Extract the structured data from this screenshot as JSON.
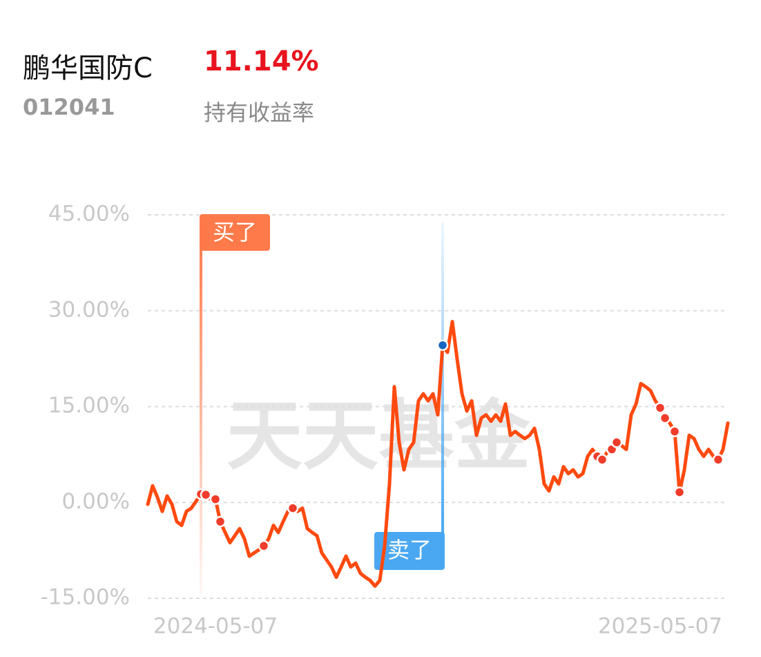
{
  "header": {
    "fund_name": "鹏华国防C",
    "return_value": "11.14%",
    "fund_code": "012041",
    "return_label": "持有收益率"
  },
  "chart_data": {
    "type": "line",
    "watermark": "天天基金",
    "color": "#ff4a0f",
    "dot_color": "#f03c2a",
    "grid": true,
    "ylim": [
      -15,
      45
    ],
    "yticks": [
      {
        "value": -15,
        "label": "-15.00%"
      },
      {
        "value": 0,
        "label": "0.00%"
      },
      {
        "value": 15,
        "label": "15.00%"
      },
      {
        "value": 30,
        "label": "30.00%"
      },
      {
        "value": 45,
        "label": "45.00%"
      }
    ],
    "xlim": [
      0,
      120
    ],
    "xticks": [
      {
        "value": 14,
        "label": "2024-05-07"
      },
      {
        "value": 106,
        "label": "2025-05-07"
      }
    ],
    "values": [
      -0.3,
      2.6,
      0.8,
      -1.4,
      1.0,
      -0.3,
      -3.0,
      -3.6,
      -1.4,
      -0.9,
      0.2,
      1.3,
      1.2,
      0.5,
      0.5,
      -3.0,
      -4.7,
      -6.3,
      -5.2,
      -4.1,
      -5.7,
      -8.4,
      -7.9,
      -7.4,
      -6.8,
      -5.7,
      -3.6,
      -4.7,
      -3.0,
      -1.4,
      -0.9,
      -1.4,
      -0.9,
      -4.1,
      -4.7,
      -5.2,
      -7.9,
      -9.0,
      -10.1,
      -11.7,
      -10.1,
      -8.4,
      -10.1,
      -9.5,
      -11.1,
      -11.7,
      -12.2,
      -13.1,
      -12.2,
      -6.8,
      2.9,
      18.1,
      9.4,
      5.1,
      8.3,
      9.4,
      15.9,
      17.0,
      15.9,
      17.0,
      13.7,
      24.6,
      23.5,
      28.3,
      22.4,
      17.0,
      14.3,
      15.9,
      10.5,
      13.2,
      13.7,
      12.7,
      13.7,
      12.7,
      15.4,
      10.5,
      11.1,
      10.5,
      10.0,
      10.5,
      11.6,
      8.3,
      2.9,
      1.8,
      4.0,
      2.9,
      5.6,
      4.5,
      5.1,
      4.0,
      4.5,
      7.2,
      8.3,
      7.2,
      6.7,
      7.8,
      8.3,
      9.4,
      8.9,
      8.3,
      13.7,
      15.4,
      18.6,
      18.1,
      17.5,
      15.9,
      14.8,
      13.2,
      12.4,
      11.1,
      1.6,
      5.1,
      10.5,
      10.0,
      8.3,
      7.2,
      8.3,
      7.2,
      6.7,
      8.3,
      12.4
    ],
    "dots": [
      11,
      12,
      14,
      15,
      24,
      30,
      93,
      94,
      96,
      97,
      106,
      107,
      109,
      110,
      118
    ],
    "annotations": [
      {
        "label": "买了",
        "index": 11,
        "color": "#ff7a4a"
      },
      {
        "label": "卖了",
        "index": 61,
        "color": "#4aa8f2"
      }
    ]
  }
}
